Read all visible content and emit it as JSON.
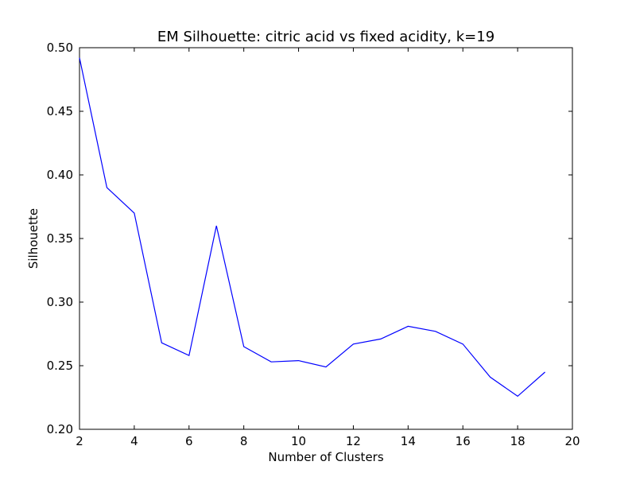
{
  "chart_data": {
    "type": "line",
    "title": "EM Silhouette: citric acid vs fixed acidity, k=19",
    "xlabel": "Number of Clusters",
    "ylabel": "Silhouette",
    "xlim": [
      2,
      20
    ],
    "ylim": [
      0.2,
      0.5
    ],
    "x_ticks": [
      "2",
      "4",
      "6",
      "8",
      "10",
      "12",
      "14",
      "16",
      "18",
      "20"
    ],
    "y_ticks": [
      "0.20",
      "0.25",
      "0.30",
      "0.35",
      "0.40",
      "0.45",
      "0.50"
    ],
    "grid": false,
    "series": [
      {
        "color": "#0000ff",
        "x": [
          2,
          3,
          4,
          5,
          6,
          7,
          8,
          9,
          10,
          11,
          12,
          13,
          14,
          15,
          16,
          17,
          18,
          19
        ],
        "y": [
          0.492,
          0.39,
          0.37,
          0.268,
          0.258,
          0.36,
          0.265,
          0.253,
          0.254,
          0.249,
          0.267,
          0.271,
          0.281,
          0.277,
          0.267,
          0.241,
          0.226,
          0.245
        ]
      }
    ]
  }
}
